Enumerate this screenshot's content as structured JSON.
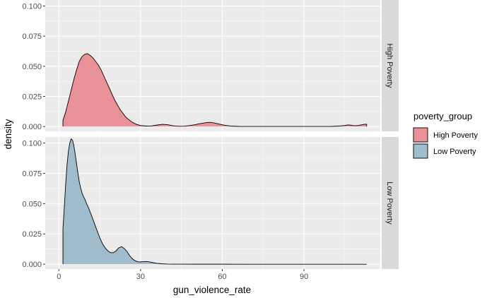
{
  "chart_data": {
    "type": "area",
    "chart_kind": "faceted density plot",
    "xlabel": "gun_violence_rate",
    "ylabel": "density",
    "xlim": [
      -5,
      118
    ],
    "ylim": [
      -0.004,
      0.105
    ],
    "x_ticks": [
      0,
      30,
      60,
      90
    ],
    "x_tick_labels": [
      "0",
      "30",
      "60",
      "90"
    ],
    "y_ticks": [
      0,
      0.025,
      0.05,
      0.075,
      0.1
    ],
    "y_tick_labels": [
      "0.000",
      "0.025",
      "0.050",
      "0.075",
      "0.100"
    ],
    "grid": true,
    "legend": {
      "title": "poverty_group",
      "placement": "right",
      "entries": [
        "High Poverty",
        "Low Poverty"
      ]
    },
    "panels": [
      {
        "strip_label": "High Poverty",
        "fill": "#e8838a",
        "series": [
          {
            "name": "High Poverty",
            "x": [
              1.5,
              2.5,
              3.5,
              4.5,
              5.5,
              6.5,
              7.5,
              8.5,
              9.5,
              10.5,
              11.5,
              12.5,
              13.5,
              14.5,
              15.5,
              16.5,
              17.5,
              18.5,
              19.5,
              20.5,
              21.5,
              22.5,
              23.5,
              24.5,
              25.5,
              27,
              28.5,
              30,
              32,
              34,
              36,
              38,
              40,
              42,
              44,
              46,
              48,
              50,
              52,
              54,
              55.5,
              57,
              59,
              61,
              63,
              66,
              70,
              75,
              80,
              85,
              90,
              95,
              100,
              103,
              105,
              106,
              107,
              108,
              109,
              110,
              111,
              112,
              113
            ],
            "y": [
              0.005,
              0.012,
              0.021,
              0.03,
              0.039,
              0.047,
              0.054,
              0.058,
              0.06,
              0.0605,
              0.059,
              0.057,
              0.054,
              0.051,
              0.047,
              0.042,
              0.037,
              0.032,
              0.027,
              0.022,
              0.018,
              0.014,
              0.011,
              0.008,
              0.006,
              0.0035,
              0.0018,
              0.0008,
              0.0004,
              0.0005,
              0.0012,
              0.0018,
              0.0015,
              0.0006,
              0.0002,
              0.0003,
              0.0008,
              0.0015,
              0.0025,
              0.0032,
              0.0035,
              0.003,
              0.002,
              0.001,
              0.0004,
              0.0001,
              5e-05,
              5e-05,
              5e-05,
              5e-05,
              5e-05,
              5e-05,
              0.0001,
              0.0004,
              0.0009,
              0.0013,
              0.0012,
              0.0008,
              0.0007,
              0.0009,
              0.0014,
              0.0018,
              0.0019
            ]
          }
        ]
      },
      {
        "strip_label": "Low Poverty",
        "fill": "#93b3c6",
        "series": [
          {
            "name": "Low Poverty",
            "x": [
              1.5,
              2,
              2.5,
              3,
              3.5,
              4,
              4.5,
              5,
              5.5,
              6,
              6.5,
              7,
              7.5,
              8,
              8.5,
              9,
              9.5,
              10,
              11,
              12,
              13,
              14,
              15,
              16,
              17,
              18,
              19,
              20,
              21,
              22,
              23,
              24,
              25,
              26,
              27,
              28,
              29,
              30,
              31,
              32,
              33,
              34,
              35,
              36,
              38,
              40,
              42,
              45,
              50,
              55,
              60,
              70,
              80,
              90,
              100,
              110,
              113
            ],
            "y": [
              0.029,
              0.047,
              0.066,
              0.082,
              0.093,
              0.1,
              0.1035,
              0.1025,
              0.098,
              0.091,
              0.083,
              0.075,
              0.068,
              0.063,
              0.059,
              0.056,
              0.054,
              0.051,
              0.046,
              0.04,
              0.034,
              0.028,
              0.022,
              0.017,
              0.0135,
              0.011,
              0.0095,
              0.0095,
              0.011,
              0.0135,
              0.0145,
              0.013,
              0.0105,
              0.007,
              0.0045,
              0.0028,
              0.002,
              0.0019,
              0.0021,
              0.0022,
              0.002,
              0.0016,
              0.0011,
              0.0007,
              0.0003,
              0.0001,
              5e-05,
              2e-05,
              1e-05,
              1e-05,
              1e-05,
              0,
              0,
              0,
              0,
              0,
              0
            ]
          }
        ]
      }
    ]
  }
}
